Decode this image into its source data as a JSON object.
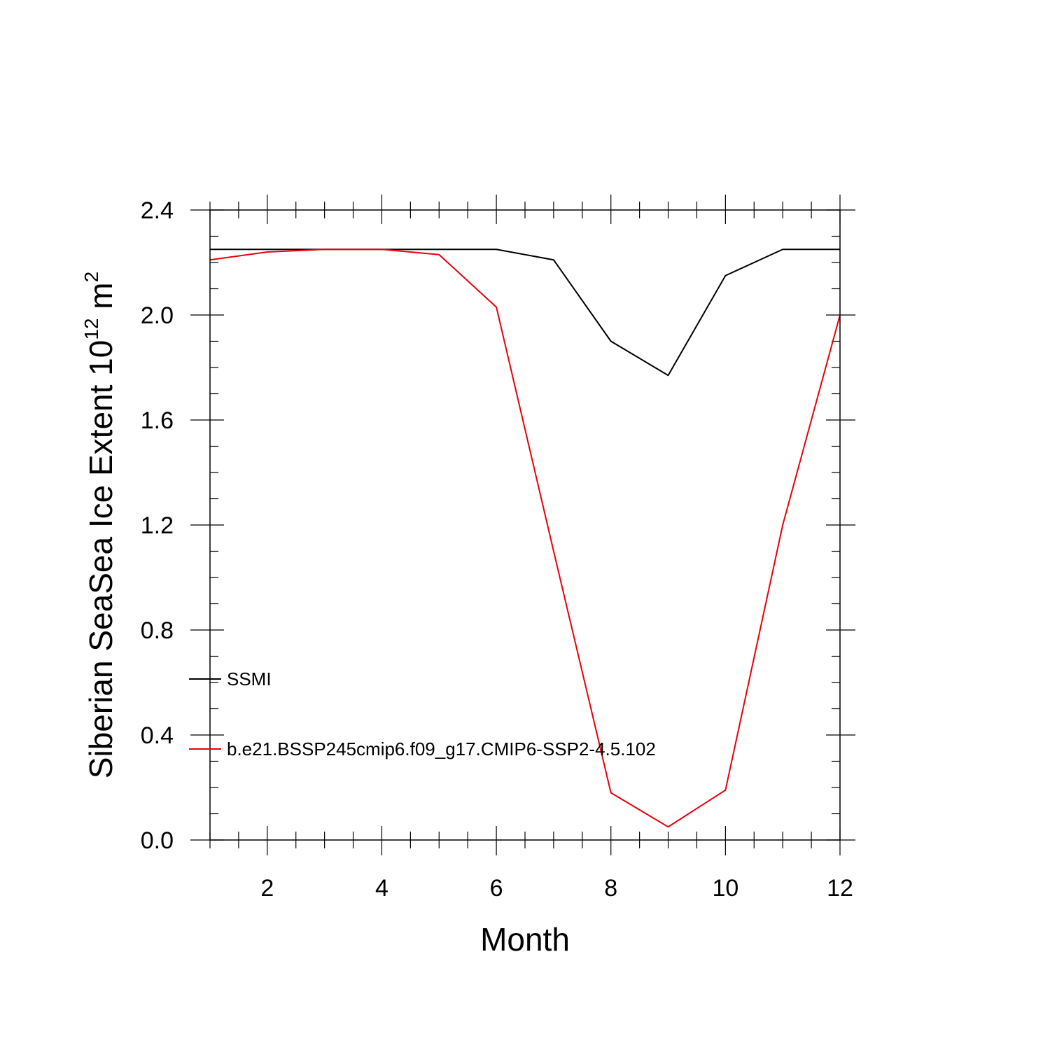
{
  "chart_data": {
    "type": "line",
    "xlabel": "Month",
    "ylabel_main": "Siberian SeaSea Ice Extent 10",
    "ylabel_exp": "12",
    "ylabel_unit": " m",
    "ylabel_unit_exp": "2",
    "xlim": [
      1,
      12
    ],
    "ylim": [
      0,
      2.4
    ],
    "xticks": [
      2,
      4,
      6,
      8,
      10,
      12
    ],
    "xtick_labels": [
      "2",
      "4",
      "6",
      "8",
      "10",
      "12"
    ],
    "yticks": [
      0,
      0.4,
      0.8,
      1.2,
      1.6,
      2.0,
      2.4
    ],
    "ytick_labels": [
      "0.0",
      "0.4",
      "0.8",
      "1.2",
      "1.6",
      "2.0",
      "2.4"
    ],
    "grid": false,
    "legend_position": "inside-left",
    "x": [
      1,
      2,
      3,
      4,
      5,
      6,
      7,
      8,
      9,
      10,
      11,
      12
    ],
    "series": [
      {
        "name": "SSMI",
        "color": "#000000",
        "values": [
          2.25,
          2.25,
          2.25,
          2.25,
          2.25,
          2.25,
          2.21,
          1.9,
          1.77,
          2.15,
          2.25,
          2.25
        ]
      },
      {
        "name": "b.e21.BSSP245cmip6.f09_g17.CMIP6-SSP2-4.5.102",
        "color": "#e8000b",
        "values": [
          2.21,
          2.24,
          2.25,
          2.25,
          2.23,
          2.03,
          1.1,
          0.18,
          0.05,
          0.19,
          1.2,
          2.0
        ]
      }
    ]
  }
}
